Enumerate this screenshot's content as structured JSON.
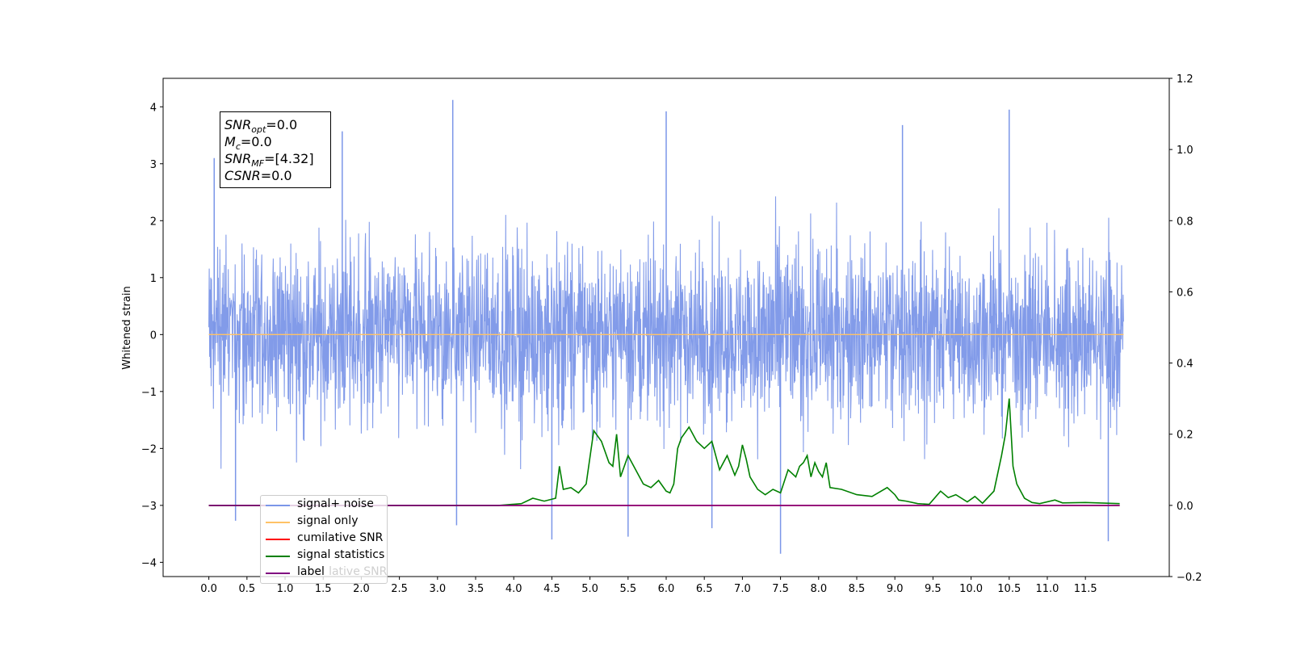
{
  "annotation": {
    "snr_opt": {
      "sym": "SNR",
      "sub": "opt",
      "val": "=0.0"
    },
    "mc": {
      "sym": "M",
      "sub": "c",
      "val": "=0.0"
    },
    "snr_mf": {
      "sym": "SNR",
      "sub": "MF",
      "val": "=[4.32]"
    },
    "csnr": {
      "sym": "CSNR",
      "val": "=0.0"
    }
  },
  "legend": [
    {
      "label": "signal+ noise",
      "color": "#7b96e8"
    },
    {
      "label": "signal only",
      "color": "#ffc266"
    },
    {
      "label": "cumilative SNR",
      "color": "#ff0000"
    },
    {
      "label": "signal statistics",
      "color": "#008000"
    },
    {
      "label": "label",
      "color": "#800080"
    }
  ],
  "legend_hidden_text": "cumulative SNR",
  "chart_data": {
    "type": "line",
    "ylabel": "Whitened strain",
    "xlim": [
      -0.6,
      12.6
    ],
    "ylim": [
      -4.25,
      4.5
    ],
    "y2lim": [
      -0.2,
      1.2
    ],
    "x_ticks": [
      "0.0",
      "0.5",
      "1.0",
      "1.5",
      "2.0",
      "2.5",
      "3.0",
      "3.5",
      "4.0",
      "4.5",
      "5.0",
      "5.5",
      "6.0",
      "6.5",
      "7.0",
      "7.5",
      "8.0",
      "8.5",
      "9.0",
      "9.5",
      "10.0",
      "10.5",
      "11.0",
      "11.5"
    ],
    "y_ticks": [
      "−4",
      "−3",
      "−2",
      "−1",
      "0",
      "1",
      "2",
      "3",
      "4"
    ],
    "y2_ticks": [
      "−0.2",
      "0.0",
      "0.2",
      "0.4",
      "0.6",
      "0.8",
      "1.0",
      "1.2"
    ],
    "series": [
      {
        "name": "signal+ noise",
        "axis": "left",
        "color": "#7b96e8",
        "x_range": [
          0.0,
          12.0
        ],
        "envelope": {
          "typical": [
            -2.2,
            2.2
          ],
          "extreme": [
            -3.85,
            4.12
          ]
        },
        "peaks": [
          [
            0.07,
            3.1
          ],
          [
            0.35,
            -3.27
          ],
          [
            1.75,
            3.57
          ],
          [
            3.2,
            4.12
          ],
          [
            3.25,
            -3.35
          ],
          [
            4.5,
            -3.6
          ],
          [
            5.5,
            -3.55
          ],
          [
            6.0,
            3.92
          ],
          [
            6.6,
            -3.4
          ],
          [
            7.5,
            -3.85
          ],
          [
            9.1,
            3.68
          ],
          [
            10.5,
            3.95
          ],
          [
            11.8,
            -3.63
          ]
        ]
      },
      {
        "name": "signal only",
        "axis": "left",
        "color": "#ffc266",
        "x": [
          0.0,
          12.0
        ],
        "y": [
          0.0,
          0.0
        ]
      },
      {
        "name": "cumilative SNR",
        "axis": "right",
        "color": "#ff0000",
        "x": [
          0.0,
          11.95
        ],
        "y": [
          0.0,
          0.0
        ]
      },
      {
        "name": "signal statistics",
        "axis": "right",
        "color": "#008000",
        "x": [
          0.0,
          3.8,
          4.1,
          4.25,
          4.4,
          4.55,
          4.6,
          4.65,
          4.75,
          4.85,
          4.95,
          5.05,
          5.15,
          5.25,
          5.3,
          5.35,
          5.4,
          5.5,
          5.55,
          5.6,
          5.7,
          5.8,
          5.9,
          6.0,
          6.05,
          6.1,
          6.15,
          6.2,
          6.3,
          6.4,
          6.5,
          6.55,
          6.6,
          6.7,
          6.8,
          6.9,
          6.95,
          7.0,
          7.05,
          7.1,
          7.2,
          7.3,
          7.4,
          7.5,
          7.6,
          7.7,
          7.75,
          7.8,
          7.85,
          7.9,
          7.95,
          8.0,
          8.05,
          8.1,
          8.15,
          8.3,
          8.5,
          8.7,
          8.9,
          9.0,
          9.05,
          9.15,
          9.3,
          9.45,
          9.6,
          9.7,
          9.8,
          9.95,
          10.05,
          10.15,
          10.3,
          10.4,
          10.45,
          10.5,
          10.55,
          10.6,
          10.7,
          10.8,
          10.9,
          11.1,
          11.2,
          11.5,
          11.95
        ],
        "y": [
          0.0,
          0.0,
          0.005,
          0.02,
          0.012,
          0.02,
          0.11,
          0.045,
          0.05,
          0.035,
          0.06,
          0.21,
          0.18,
          0.12,
          0.11,
          0.2,
          0.08,
          0.14,
          0.12,
          0.1,
          0.06,
          0.05,
          0.07,
          0.04,
          0.035,
          0.06,
          0.16,
          0.19,
          0.22,
          0.18,
          0.16,
          0.17,
          0.18,
          0.1,
          0.14,
          0.085,
          0.11,
          0.17,
          0.13,
          0.08,
          0.045,
          0.03,
          0.045,
          0.035,
          0.1,
          0.08,
          0.11,
          0.12,
          0.14,
          0.08,
          0.12,
          0.095,
          0.08,
          0.12,
          0.05,
          0.045,
          0.03,
          0.025,
          0.05,
          0.03,
          0.015,
          0.012,
          0.005,
          0.003,
          0.04,
          0.022,
          0.03,
          0.01,
          0.025,
          0.006,
          0.04,
          0.14,
          0.2,
          0.3,
          0.11,
          0.06,
          0.02,
          0.008,
          0.005,
          0.015,
          0.007,
          0.008,
          0.005
        ]
      },
      {
        "name": "label",
        "axis": "right",
        "color": "#800080",
        "x": [
          0.0,
          11.95
        ],
        "y": [
          0.0,
          0.0
        ]
      }
    ]
  }
}
